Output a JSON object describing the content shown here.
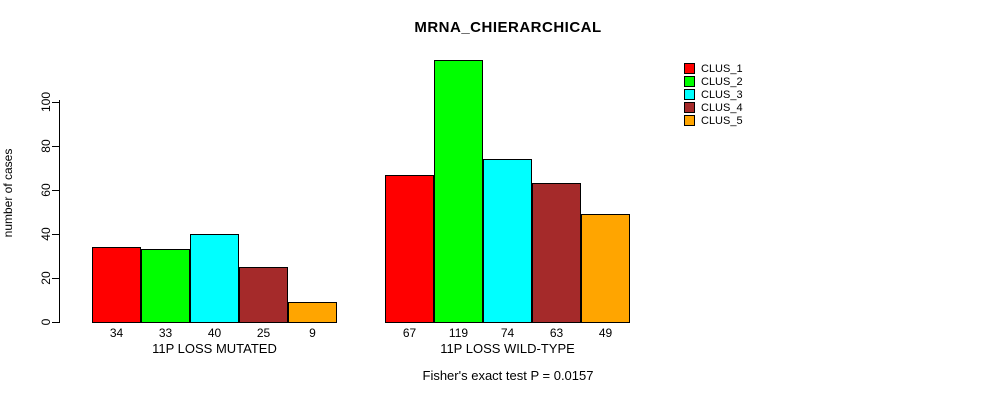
{
  "title": "MRNA_CHIERARCHICAL",
  "annotation": "Fisher's exact test P = 0.0157",
  "chart_data": {
    "type": "bar",
    "title": "MRNA_CHIERARCHICAL",
    "ylabel": "number of cases",
    "xlabel": "",
    "yticks": [
      0,
      20,
      40,
      60,
      80,
      100
    ],
    "ylim": [
      0,
      119
    ],
    "grid": false,
    "legend_position": "top-right",
    "categories": [
      "11P LOSS MUTATED",
      "11P LOSS WILD-TYPE"
    ],
    "series": [
      {
        "name": "CLUS_1",
        "color": "#ff0000",
        "values": [
          34,
          67
        ]
      },
      {
        "name": "CLUS_2",
        "color": "#00ff00",
        "values": [
          33,
          119
        ]
      },
      {
        "name": "CLUS_3",
        "color": "#00ffff",
        "values": [
          40,
          74
        ]
      },
      {
        "name": "CLUS_4",
        "color": "#a52a2a",
        "values": [
          25,
          63
        ]
      },
      {
        "name": "CLUS_5",
        "color": "#ffa500",
        "values": [
          9,
          49
        ]
      }
    ],
    "bar_value_labels": [
      [
        34,
        33,
        40,
        25,
        9
      ],
      [
        67,
        119,
        74,
        63,
        49
      ]
    ],
    "annotation": "Fisher's exact test P = 0.0157"
  }
}
